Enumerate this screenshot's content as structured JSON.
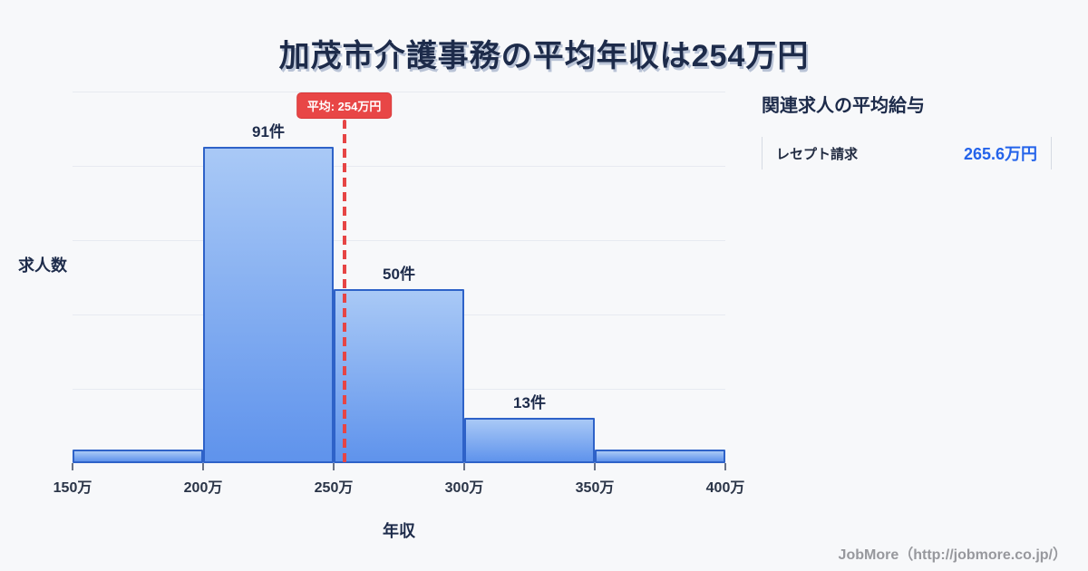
{
  "page": {
    "title": "加茂市介護事務の平均年収は254万円",
    "footer": "JobMore（http://jobmore.co.jp/）"
  },
  "colors": {
    "background": "#f7f8fa",
    "bar_fill_top": "#a9c9f6",
    "bar_fill_bottom": "#5f93ec",
    "bar_border": "#2e62c8",
    "mean_line_red": "#e64545",
    "badge_background": "#e84646",
    "value_blue": "#2463ea",
    "title_navy": "#1d2b4a",
    "gridline": "#e7eaf1",
    "footer_gray": "#97989d"
  },
  "chart_data": {
    "type": "bar",
    "title": "加茂市介護事務の平均年収は254万円",
    "xlabel": "年収",
    "ylabel": "求人数",
    "bin_edges_labels": [
      "150万",
      "200万",
      "250万",
      "300万",
      "350万",
      "400万"
    ],
    "axis_min": 150,
    "axis_max": 400,
    "values": [
      4,
      91,
      50,
      13,
      4
    ],
    "bar_labels": [
      "",
      "91件",
      "50件",
      "13件",
      ""
    ],
    "mean": {
      "value": 254,
      "label": "平均: 254万円"
    },
    "grid": "horizontal",
    "legend": "none"
  },
  "side_panel": {
    "heading": "関連求人の平均給与",
    "rows": [
      {
        "label": "レセプト請求",
        "value": "265.6万円"
      }
    ]
  }
}
